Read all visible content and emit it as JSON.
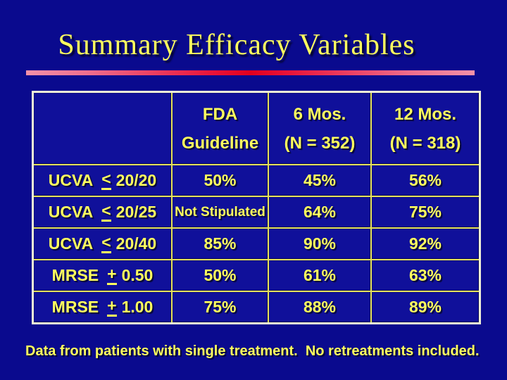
{
  "slide": {
    "title": "Summary Efficacy Variables",
    "footnote": "Data from patients with single treatment.  No retreatments included."
  },
  "table": {
    "headers": [
      {
        "line1": "",
        "line2": ""
      },
      {
        "line1": "FDA",
        "line2": "Guideline"
      },
      {
        "line1": "6 Mos.",
        "line2": "(N = 352)"
      },
      {
        "line1": "12 Mos.",
        "line2": "(N = 318)"
      }
    ],
    "rows": [
      {
        "label": {
          "name": "UCVA",
          "operator": "<",
          "value": "20/20"
        },
        "values": [
          "50%",
          "45%",
          "56%"
        ]
      },
      {
        "label": {
          "name": "UCVA",
          "operator": "<",
          "value": "20/25"
        },
        "values": [
          "Not Stipulated",
          "64%",
          "75%"
        ]
      },
      {
        "label": {
          "name": "UCVA",
          "operator": "<",
          "value": "20/40"
        },
        "values": [
          "85%",
          "90%",
          "92%"
        ]
      },
      {
        "label": {
          "name": "MRSE",
          "operator": "+",
          "value": "0.50"
        },
        "values": [
          "50%",
          "61%",
          "63%"
        ]
      },
      {
        "label": {
          "name": "MRSE",
          "operator": "+",
          "value": "1.00"
        },
        "values": [
          "75%",
          "88%",
          "89%"
        ]
      }
    ]
  },
  "colors": {
    "background": "#0A0A8E",
    "cell_background": "#10109A",
    "text_yellow": "#FFFF5E",
    "gridline_yellow": "#E6E25C",
    "outer_border_cream": "#F0F0D8",
    "bar_pink": "#F491A9",
    "bar_red": "#E2001E"
  }
}
